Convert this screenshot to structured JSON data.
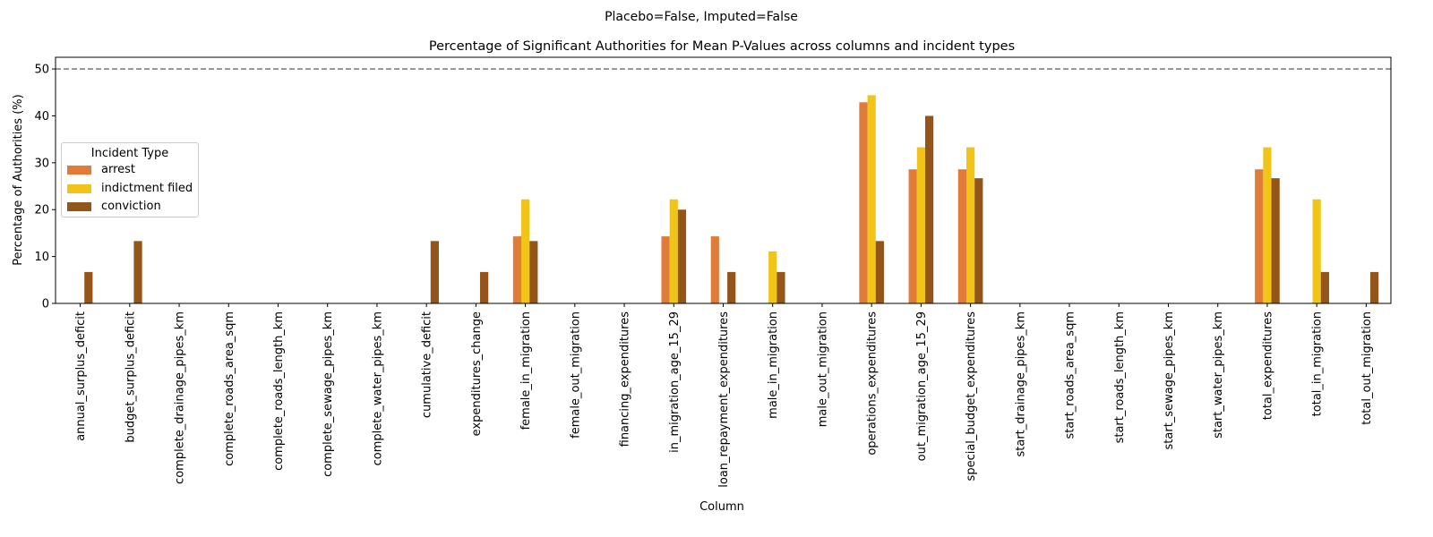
{
  "chart_data": {
    "type": "bar",
    "suptitle": "Placebo=False, Imputed=False",
    "title": "Percentage of Significant Authorities for Mean P-Values across columns and incident types",
    "xlabel": "Column",
    "ylabel": "Percentage of Authorities (%)",
    "ylim": [
      0,
      52.5
    ],
    "yticks": [
      0,
      10,
      20,
      30,
      40,
      50
    ],
    "reference_line": {
      "value": 50,
      "style": "dashed",
      "color": "#808080"
    },
    "grid": false,
    "legend": {
      "title": "Incident Type",
      "placement": "center-left"
    },
    "categories": [
      "annual_surplus_deficit",
      "budget_surplus_deficit",
      "complete_drainage_pipes_km",
      "complete_roads_area_sqm",
      "complete_roads_length_km",
      "complete_sewage_pipes_km",
      "complete_water_pipes_km",
      "cumulative_deficit",
      "expenditures_change",
      "female_in_migration",
      "female_out_migration",
      "financing_expenditures",
      "in_migration_age_15_29",
      "loan_repayment_expenditures",
      "male_in_migration",
      "male_out_migration",
      "operations_expenditures",
      "out_migration_age_15_29",
      "special_budget_expenditures",
      "start_drainage_pipes_km",
      "start_roads_area_sqm",
      "start_roads_length_km",
      "start_sewage_pipes_km",
      "start_water_pipes_km",
      "total_expenditures",
      "total_in_migration",
      "total_out_migration"
    ],
    "series": [
      {
        "name": "arrest",
        "color": "#e07b39",
        "values": [
          0,
          0,
          0,
          0,
          0,
          0,
          0,
          0,
          0,
          14.3,
          0,
          0,
          14.3,
          14.3,
          0,
          0,
          42.9,
          28.6,
          28.6,
          0,
          0,
          0,
          0,
          0,
          28.6,
          0,
          0
        ]
      },
      {
        "name": "indictment filed",
        "color": "#f0c419",
        "values": [
          0,
          0,
          0,
          0,
          0,
          0,
          0,
          0,
          0,
          22.2,
          0,
          0,
          22.2,
          0,
          11.1,
          0,
          44.4,
          33.3,
          33.3,
          0,
          0,
          0,
          0,
          0,
          33.3,
          22.2,
          0
        ]
      },
      {
        "name": "conviction",
        "color": "#93551a",
        "values": [
          6.7,
          13.3,
          0,
          0,
          0,
          0,
          0,
          13.3,
          6.7,
          13.3,
          0,
          0,
          20.0,
          6.7,
          6.7,
          0,
          13.3,
          40.0,
          26.7,
          0,
          0,
          0,
          0,
          0,
          26.7,
          6.7,
          6.7
        ]
      }
    ]
  }
}
